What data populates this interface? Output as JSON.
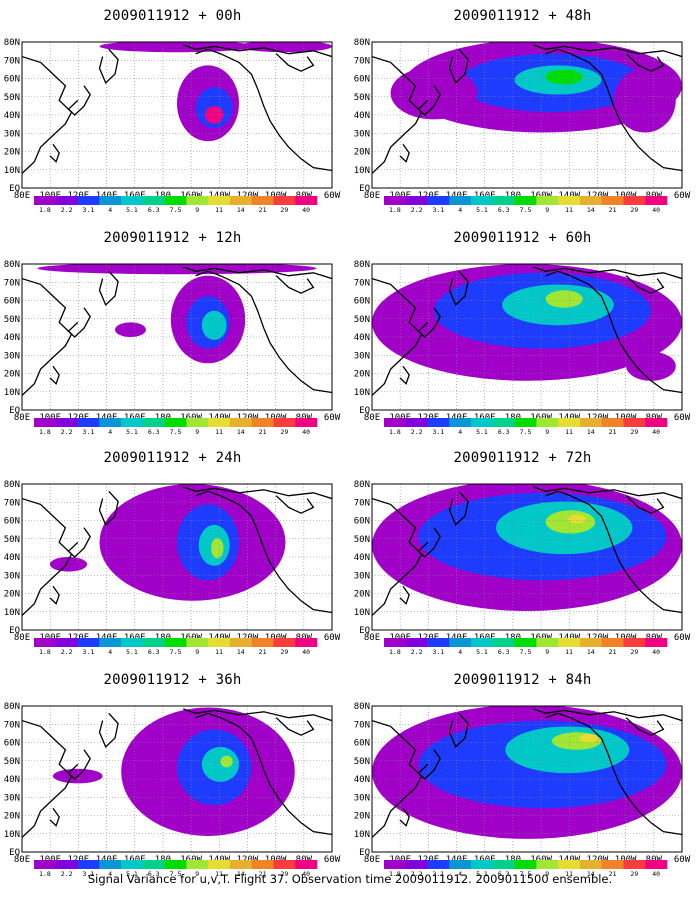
{
  "caption": "Signal Variance for u,v,T. Flight 37. Observation time 2009011912. 2009011500 ensemble.",
  "lat_labels": [
    "80N",
    "70N",
    "60N",
    "50N",
    "40N",
    "30N",
    "20N",
    "10N",
    "EQ"
  ],
  "lon_labels": [
    "80E",
    "100E",
    "120E",
    "140E",
    "160E",
    "180",
    "160W",
    "140W",
    "120W",
    "100W",
    "80W",
    "60W"
  ],
  "colorbar": {
    "labels": [
      "1.8",
      "2.2",
      "3.1",
      "4",
      "5.1",
      "6.3",
      "7.5",
      "9",
      "11",
      "14",
      "21",
      "29",
      "40"
    ],
    "colors": [
      "#a000c8",
      "#8200dc",
      "#1e3cff",
      "#0a96d2",
      "#00c8c8",
      "#00d28c",
      "#00dc00",
      "#a0e632",
      "#e6dc32",
      "#e6af2d",
      "#f08228",
      "#fa3c3c",
      "#f00082"
    ]
  },
  "panels": [
    {
      "title": "2009011912 + 00h"
    },
    {
      "title": "2009011912 + 48h"
    },
    {
      "title": "2009011912 + 12h"
    },
    {
      "title": "2009011912 + 60h"
    },
    {
      "title": "2009011912 + 24h"
    },
    {
      "title": "2009011912 + 72h"
    },
    {
      "title": "2009011912 + 36h"
    },
    {
      "title": "2009011912 + 84h"
    }
  ]
}
